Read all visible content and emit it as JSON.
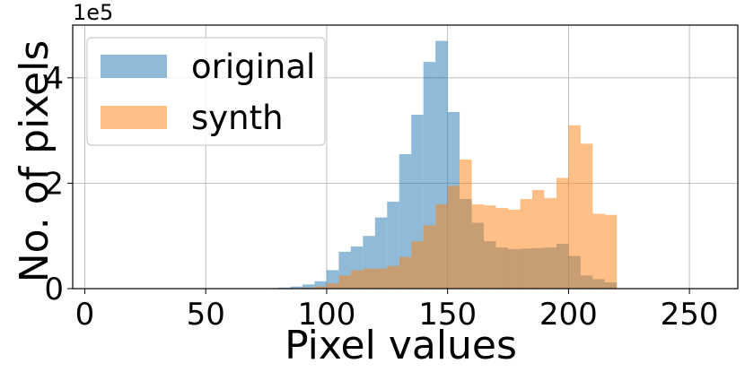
{
  "chart_data": {
    "type": "bar",
    "xlabel": "Pixel values",
    "ylabel": "No. of pixels",
    "y_scale_label": "1e5",
    "xlim": [
      -5,
      270
    ],
    "ylim": [
      0,
      5.0
    ],
    "y_multiplier": 100000,
    "bin_width": 5,
    "xticks": [
      0,
      50,
      100,
      150,
      200,
      250
    ],
    "yticks": [
      0,
      2,
      4
    ],
    "grid": true,
    "legend_position": "top-left",
    "bins": [
      75,
      80,
      85,
      90,
      95,
      100,
      105,
      110,
      115,
      120,
      125,
      130,
      135,
      140,
      145,
      150,
      155,
      160,
      165,
      170,
      175,
      180,
      185,
      190,
      195,
      200,
      205,
      210,
      215
    ],
    "series": [
      {
        "name": "original",
        "color": "#1f77b4",
        "values": [
          0.01,
          0.02,
          0.04,
          0.08,
          0.14,
          0.35,
          0.7,
          0.8,
          1.0,
          1.35,
          1.65,
          2.55,
          3.3,
          4.3,
          4.7,
          3.35,
          1.7,
          1.25,
          0.9,
          0.78,
          0.75,
          0.76,
          0.77,
          0.78,
          0.85,
          0.62,
          0.25,
          0.18,
          0.12
        ]
      },
      {
        "name": "synth",
        "color": "#ff7f0e",
        "values": [
          0,
          0,
          0.01,
          0.02,
          0.04,
          0.1,
          0.25,
          0.35,
          0.38,
          0.38,
          0.43,
          0.6,
          0.9,
          1.2,
          1.6,
          1.95,
          2.45,
          1.6,
          1.58,
          1.53,
          1.5,
          1.7,
          1.87,
          1.72,
          2.1,
          3.1,
          2.75,
          1.42,
          1.4
        ]
      }
    ]
  }
}
